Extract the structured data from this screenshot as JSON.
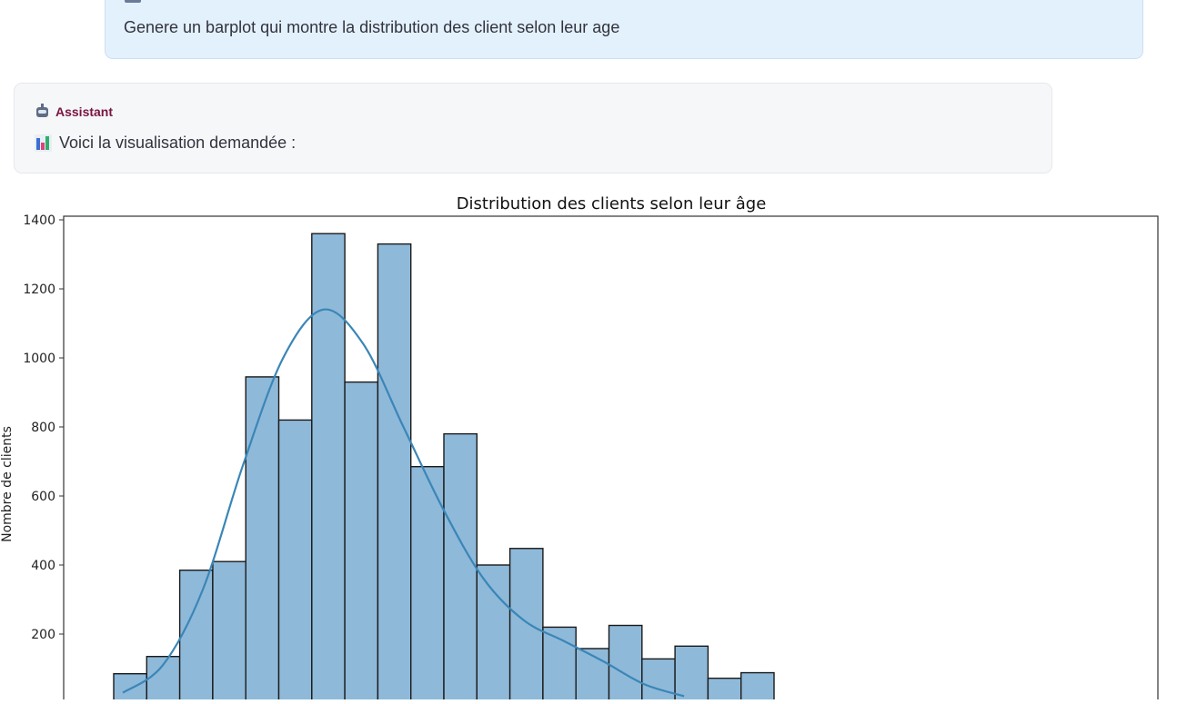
{
  "user_message": {
    "text": "Genere un barplot qui montre la distribution des client selon leur age"
  },
  "assistant": {
    "name": "Assistant",
    "message": "Voici la visualisation demandée :",
    "avatar_icon": "robot-icon",
    "message_icon": "bar-chart-icon"
  },
  "chart_data": {
    "type": "bar",
    "title": "Distribution des clients selon leur âge",
    "ylabel": "Nombre de clients",
    "xlabel": "",
    "yticks": [
      200,
      400,
      600,
      800,
      1000,
      1200,
      1400
    ],
    "ylim": [
      0,
      1450
    ],
    "values": [
      85,
      135,
      385,
      410,
      945,
      820,
      1360,
      930,
      1330,
      685,
      780,
      400,
      448,
      220,
      158,
      225,
      128,
      165,
      72,
      88,
      5
    ],
    "kde": [
      30,
      110,
      330,
      690,
      1000,
      1140,
      1040,
      800,
      560,
      360,
      240,
      180,
      120,
      55,
      20
    ],
    "bar_color": "#8fb9d9",
    "line_color": "#3a86b7",
    "grid": false,
    "legend": "none"
  }
}
